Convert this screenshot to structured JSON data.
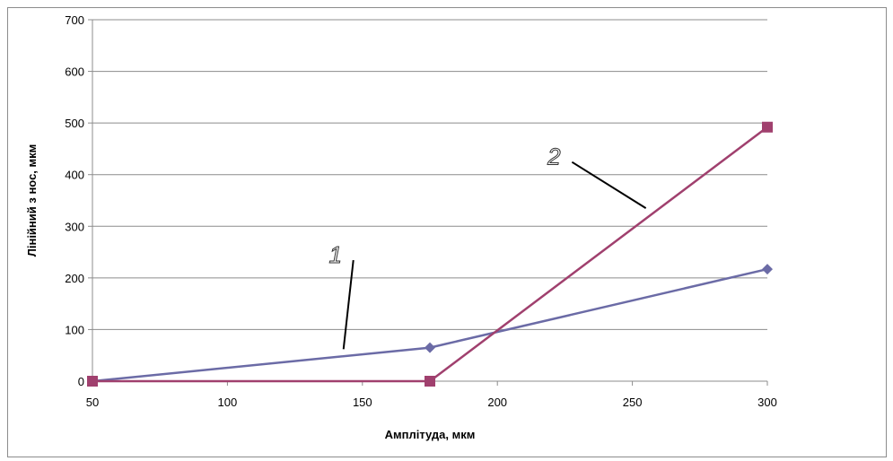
{
  "chart_data": {
    "type": "line",
    "title": "",
    "xlabel": "Амплітуда, мкм",
    "ylabel": "Лінійний з нос, мкм",
    "x": [
      50,
      175,
      300
    ],
    "xlim": [
      50,
      300
    ],
    "ylim": [
      0,
      700
    ],
    "xticks": [
      50,
      100,
      150,
      200,
      250,
      300
    ],
    "yticks": [
      0,
      100,
      200,
      300,
      400,
      500,
      600,
      700
    ],
    "grid": "horizontal",
    "series": [
      {
        "label": "1",
        "color": "#6b6ba6",
        "marker": "diamond",
        "values": [
          0,
          65,
          217
        ]
      },
      {
        "label": "2",
        "color": "#a0406e",
        "marker": "square",
        "values": [
          0,
          0,
          492
        ]
      }
    ],
    "annotations": [
      {
        "text": "1",
        "series": 0,
        "label_at": [
          140,
          250
        ],
        "arrow_to": [
          143,
          62
        ]
      },
      {
        "text": "2",
        "series": 1,
        "label_at": [
          221,
          440
        ],
        "arrow_to": [
          255,
          335
        ]
      }
    ]
  }
}
